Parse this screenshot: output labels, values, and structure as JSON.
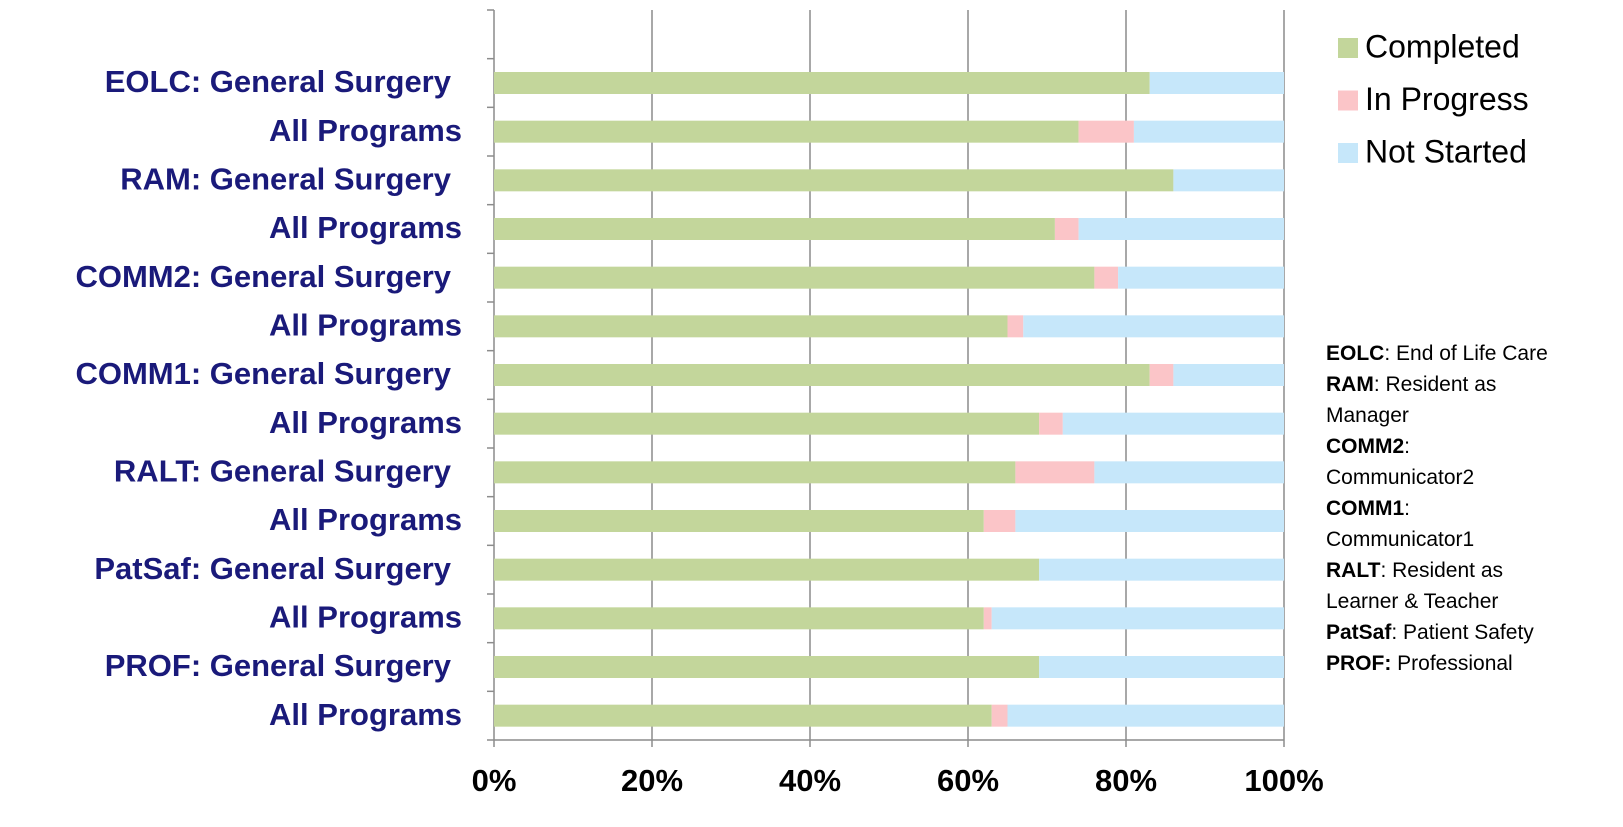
{
  "chart_data": {
    "type": "stacked_bar_horizontal",
    "categories": [
      "EOLC: General Surgery",
      "All Programs",
      "RAM: General Surgery",
      "All Programs",
      "COMM2: General Surgery",
      "All Programs",
      "COMM1: General Surgery",
      "All Programs",
      "RALT: General Surgery",
      "All Programs",
      "PatSaf: General Surgery",
      "All Programs",
      "PROF: General Surgery",
      "All Programs"
    ],
    "series": [
      {
        "name": "Completed",
        "color": "#c3d69b",
        "values": [
          83,
          74,
          86,
          71,
          76,
          65,
          83,
          69,
          66,
          62,
          69,
          62,
          69,
          63
        ]
      },
      {
        "name": "In Progress",
        "color": "#fbc5c8",
        "values": [
          0,
          7,
          0,
          3,
          3,
          2,
          3,
          3,
          10,
          4,
          0,
          1,
          0,
          2
        ]
      },
      {
        "name": "Not Started",
        "color": "#c6e7fa",
        "values": [
          17,
          19,
          14,
          26,
          21,
          33,
          14,
          28,
          24,
          34,
          31,
          37,
          31,
          35
        ]
      }
    ],
    "xlim": [
      0,
      100
    ],
    "xticks": [
      {
        "value": 0,
        "label": "0%"
      },
      {
        "value": 20,
        "label": "20%"
      },
      {
        "value": 40,
        "label": "40%"
      },
      {
        "value": 60,
        "label": "60%"
      },
      {
        "value": 80,
        "label": "80%"
      },
      {
        "value": 100,
        "label": "100%"
      }
    ],
    "grid": true,
    "legend": "top-right",
    "annotations": [
      {
        "term": "EOLC",
        "text": ": End of Life Care"
      },
      {
        "term": "RAM",
        "text": ": Resident as Manager"
      },
      {
        "term": "COMM2",
        "text": ": Communicator2"
      },
      {
        "term": "COMM1",
        "text": ": Communicator1"
      },
      {
        "term": "RALT",
        "text": ": Resident as Learner & Teacher"
      },
      {
        "term": "PatSaf",
        "text": ": Patient Safety"
      },
      {
        "term": "PROF:",
        "text": " Professional"
      }
    ]
  }
}
